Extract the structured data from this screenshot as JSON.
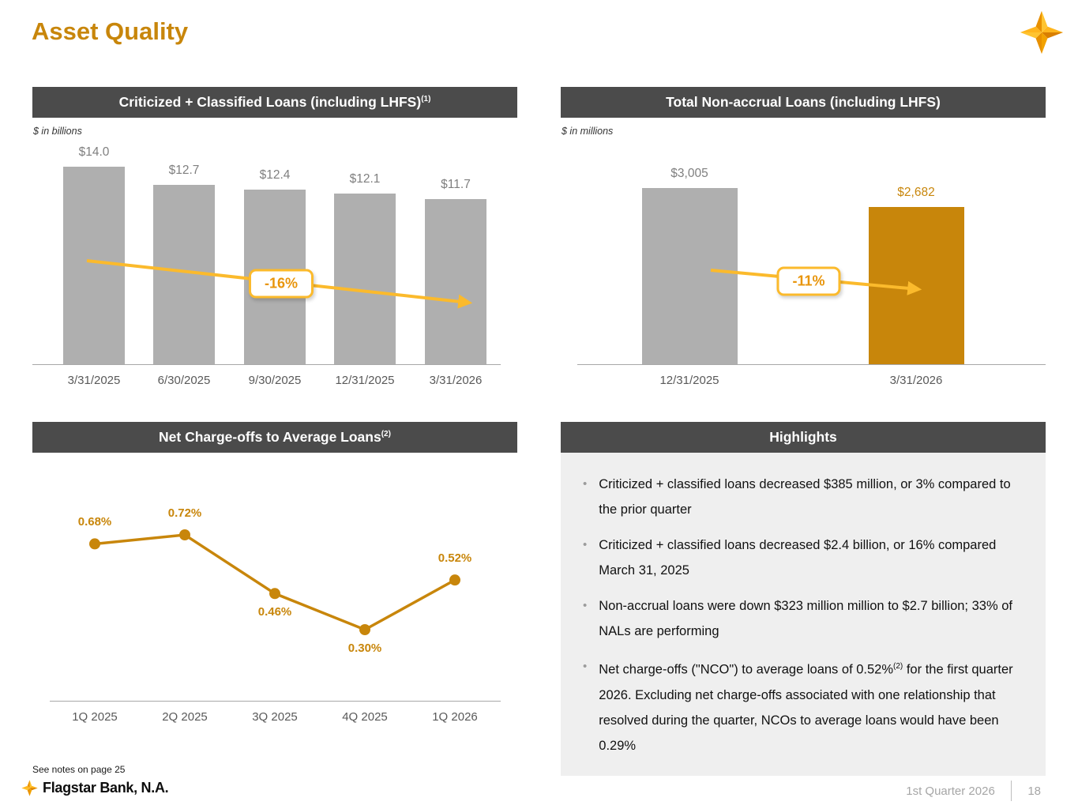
{
  "page": {
    "title": "Asset Quality",
    "notes": "See notes on page 25",
    "brand": "Flagstar Bank, N.A.",
    "footer_quarter": "1st Quarter 2026",
    "page_number": "18"
  },
  "panels": {
    "criticized": {
      "header": "Criticized + Classified Loans (including LHFS)",
      "header_sup": "(1)",
      "unit_label": "$ in billions"
    },
    "nonaccrual": {
      "header": "Total Non-accrual Loans (including LHFS)",
      "unit_label": "$ in millions"
    },
    "nco": {
      "header": "Net Charge-offs to Average Loans",
      "header_sup": "(2)"
    },
    "highlights": {
      "header": "Highlights",
      "bullets": [
        [
          {
            "t": "Criticized + classified loans decreased $385 million, or 3% compared to the prior quarter"
          }
        ],
        [
          {
            "t": "Criticized + classified loans decreased $2.4 billion, or 16% compared March 31, 2025"
          }
        ],
        [
          {
            "t": "Non-accrual loans were down $323 million million to $2.7 billion; 33% of NALs are performing"
          }
        ],
        [
          {
            "t": "Net charge-offs (\"NCO\") to average loans of 0.52%"
          },
          {
            "sup": "(2)"
          },
          {
            "t": " for the first quarter 2026.  Excluding net charge-offs associated with one relationship that resolved during the quarter, NCOs to average loans would have been 0.29%"
          }
        ]
      ]
    }
  },
  "chart_data": [
    {
      "type": "bar",
      "title": "Criticized + Classified Loans (including LHFS)",
      "unit": "$ in billions",
      "categories": [
        "3/31/2025",
        "6/30/2025",
        "9/30/2025",
        "12/31/2025",
        "3/31/2026"
      ],
      "values": [
        14.0,
        12.7,
        12.4,
        12.1,
        11.7
      ],
      "data_labels": [
        "$14.0",
        "$12.7",
        "$12.4",
        "$12.1",
        "$11.7"
      ],
      "bar_colors": [
        "gray",
        "gray",
        "gray",
        "gray",
        "gray"
      ],
      "annotation": "-16%",
      "ylim": [
        0,
        14.0
      ],
      "legend": "none",
      "grid": false
    },
    {
      "type": "bar",
      "title": "Total Non-accrual Loans (including LHFS)",
      "unit": "$ in millions",
      "categories": [
        "12/31/2025",
        "3/31/2026"
      ],
      "values": [
        3005,
        2682
      ],
      "data_labels": [
        "$3,005",
        "$2,682"
      ],
      "bar_colors": [
        "gray",
        "gold"
      ],
      "annotation": "-11%",
      "ylim": [
        0,
        3005
      ],
      "legend": "none",
      "grid": false
    },
    {
      "type": "line",
      "title": "Net Charge-offs to Average Loans",
      "categories": [
        "1Q 2025",
        "2Q 2025",
        "3Q 2025",
        "4Q 2025",
        "1Q 2026"
      ],
      "values": [
        0.68,
        0.72,
        0.46,
        0.3,
        0.52
      ],
      "data_labels": [
        "0.68%",
        "0.72%",
        "0.46%",
        "0.30%",
        "0.52%"
      ],
      "label_positions": [
        "above",
        "above",
        "below",
        "below",
        "above"
      ],
      "legend": "none",
      "grid": false
    }
  ],
  "colors": {
    "gold": "#C8860B",
    "arrow_yellow": "#FBBA2C",
    "annotation_text": "#E8950C",
    "header_bg": "#4B4B4B",
    "bar_gray": "#AFAFAF",
    "bar_label_gray": "#7F7F7F",
    "category_label": "#595959",
    "axis": "#A8A8A8",
    "highlights_bg": "#EFEFEF",
    "footer_gray": "#A6A6A6"
  }
}
